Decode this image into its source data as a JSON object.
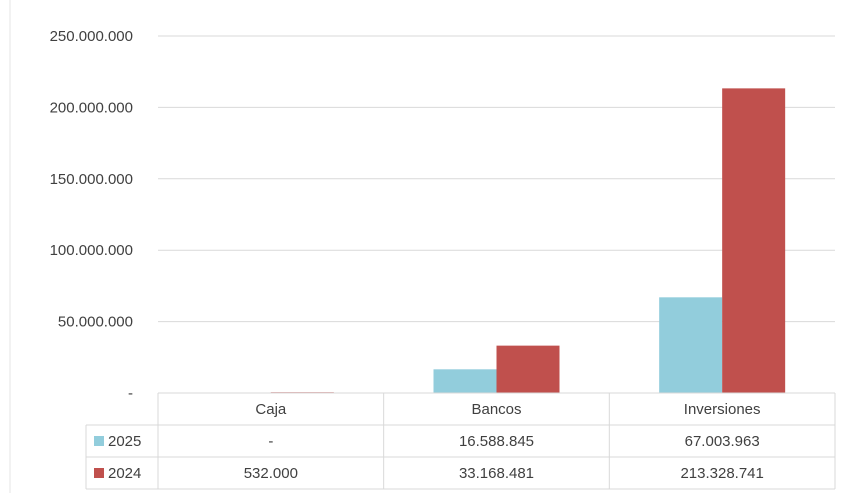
{
  "chart_data": {
    "type": "bar",
    "categories": [
      "Caja",
      "Bancos",
      "Inversiones"
    ],
    "series": [
      {
        "name": "2025",
        "color": "#92cddc",
        "values": [
          0,
          16588845,
          67003963
        ],
        "labels": [
          "-",
          "16.588.845",
          "67.003.963"
        ]
      },
      {
        "name": "2024",
        "color": "#c0504d",
        "values": [
          532000,
          33168481,
          213328741
        ],
        "labels": [
          "532.000",
          "33.168.481",
          "213.328.741"
        ]
      }
    ],
    "ylim": [
      0,
      250000000
    ],
    "yticks": [
      0,
      50000000,
      100000000,
      150000000,
      200000000,
      250000000
    ],
    "ytick_labels": [
      "-",
      "50.000.000",
      "100.000.000",
      "150.000.000",
      "200.000.000",
      "250.000.000"
    ],
    "grid": true,
    "legend": "data-table"
  }
}
